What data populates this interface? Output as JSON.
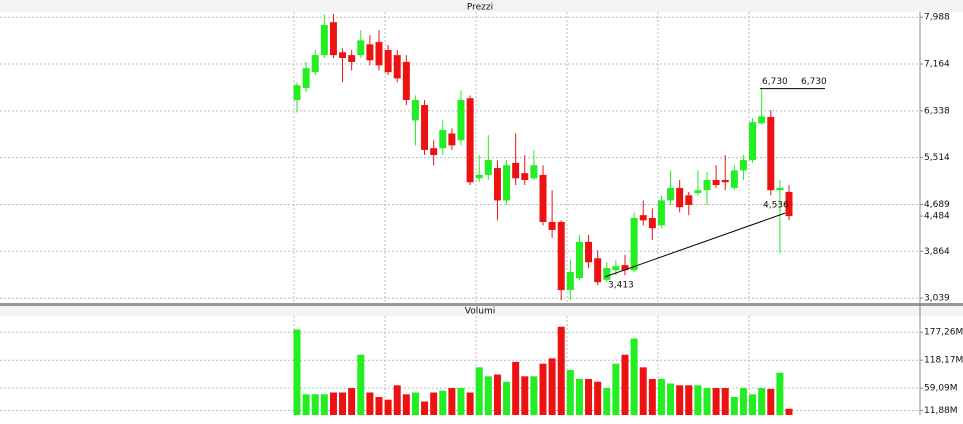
{
  "chart_data": [
    {
      "type": "candlestick",
      "title": "Prezzi",
      "open": [
        6.53,
        6.74,
        7.02,
        7.32,
        7.9,
        7.37,
        7.32,
        7.32,
        7.51,
        7.55,
        7.41,
        7.32,
        7.2,
        6.17,
        6.44,
        5.68,
        5.68,
        5.94,
        5.82,
        6.56,
        5.15,
        5.21,
        5.33,
        4.76,
        5.42,
        5.24,
        5.15,
        5.21,
        4.38,
        4.38,
        3.18,
        3.39,
        4.03,
        3.74,
        3.36,
        3.53,
        3.62,
        3.53,
        4.5,
        4.45,
        4.32,
        4.76,
        4.98,
        4.85,
        4.89,
        4.94,
        5.12,
        5.12,
        4.98,
        5.29,
        5.47,
        6.12,
        6.23,
        4.94,
        4.91
      ],
      "high": [
        6.84,
        7.2,
        7.41,
        8.04,
        8.04,
        7.44,
        7.41,
        7.76,
        7.67,
        7.76,
        7.5,
        7.41,
        7.32,
        6.61,
        6.53,
        5.82,
        6.17,
        6.03,
        6.7,
        6.61,
        5.56,
        5.91,
        5.47,
        5.47,
        5.94,
        5.56,
        5.65,
        5.38,
        4.94,
        4.41,
        3.71,
        4.15,
        4.15,
        3.88,
        3.67,
        3.71,
        3.8,
        4.55,
        4.76,
        4.62,
        4.85,
        5.29,
        5.12,
        4.91,
        5.29,
        5.26,
        5.38,
        5.56,
        5.38,
        5.56,
        6.21,
        6.73,
        6.35,
        5.12,
        5.03
      ],
      "low": [
        6.31,
        6.67,
        6.97,
        7.27,
        7.27,
        6.84,
        7.05,
        7.27,
        7.14,
        7.05,
        6.97,
        6.84,
        6.44,
        5.73,
        5.56,
        5.38,
        5.56,
        5.65,
        5.73,
        5.03,
        5.08,
        5.12,
        4.41,
        4.68,
        5.03,
        5.03,
        5.12,
        4.32,
        4.1,
        3.0,
        3.0,
        3.36,
        3.57,
        3.27,
        3.32,
        3.44,
        3.44,
        3.5,
        4.32,
        4.06,
        4.27,
        4.68,
        4.55,
        4.5,
        4.85,
        4.68,
        4.98,
        4.94,
        4.94,
        5.12,
        5.42,
        6.09,
        4.85,
        3.83,
        4.41
      ],
      "close": [
        6.79,
        7.09,
        7.32,
        7.85,
        7.32,
        7.27,
        7.2,
        7.58,
        7.23,
        7.14,
        7.02,
        6.91,
        6.53,
        6.53,
        5.65,
        5.56,
        6.0,
        5.73,
        6.53,
        5.08,
        5.21,
        5.47,
        4.76,
        5.38,
        5.15,
        5.12,
        5.38,
        4.38,
        4.24,
        3.18,
        3.5,
        4.03,
        3.67,
        3.32,
        3.57,
        3.6,
        3.53,
        4.45,
        4.41,
        4.27,
        4.76,
        4.98,
        4.64,
        4.68,
        4.94,
        5.12,
        5.03,
        5.08,
        5.29,
        5.47,
        6.14,
        6.24,
        4.94,
        4.98,
        4.484
      ],
      "up_color": "#22ee22",
      "down_color": "#ee1111",
      "ylim": [
        2.97,
        8.08
      ],
      "yticks": [
        {
          "value": 7.988,
          "label": "7,988"
        },
        {
          "value": 7.164,
          "label": "7,164"
        },
        {
          "value": 6.338,
          "label": "6,338"
        },
        {
          "value": 5.514,
          "label": "5,514"
        },
        {
          "value": 4.689,
          "label": "4,689"
        },
        {
          "value": 3.864,
          "label": "3,864"
        },
        {
          "value": 3.039,
          "label": "3,039"
        }
      ],
      "last_price": {
        "value": 4.484,
        "label": "4,484"
      },
      "annotations": [
        {
          "value": 6.73,
          "label": "6,730"
        },
        {
          "value": 6.73,
          "label": "6,730"
        },
        {
          "value": 4.536,
          "label": "4,536"
        },
        {
          "value": 3.413,
          "label": "3,413"
        }
      ],
      "grid": true
    },
    {
      "type": "volume",
      "title": "Volumi",
      "values": [
        183.0,
        46.1,
        46.1,
        46.1,
        49.9,
        49.9,
        59.4,
        129.7,
        49.9,
        40.4,
        34.7,
        65.1,
        46.1,
        49.9,
        30.9,
        49.9,
        53.7,
        59.4,
        59.4,
        49.9,
        103.1,
        84.1,
        87.9,
        72.7,
        114.5,
        84.1,
        84.1,
        110.7,
        122.1,
        188.7,
        97.4,
        78.4,
        78.4,
        72.7,
        59.4,
        110.7,
        129.7,
        164.0,
        103.1,
        78.4,
        78.4,
        68.9,
        65.1,
        65.1,
        65.1,
        59.4,
        59.4,
        59.4,
        40.4,
        59.4,
        46.1,
        59.4,
        57.5,
        91.7,
        15.7
      ],
      "up_color": "#22ee22",
      "down_color": "#ee1111",
      "ylim": [
        2.4,
        211.5
      ],
      "yticks": [
        {
          "value": 177.26,
          "label": "177,26M"
        },
        {
          "value": 118.17,
          "label": "118,17M"
        },
        {
          "value": 59.09,
          "label": "59,09M"
        },
        {
          "value": 11.88,
          "label": "11,88M"
        }
      ],
      "grid": true
    }
  ]
}
